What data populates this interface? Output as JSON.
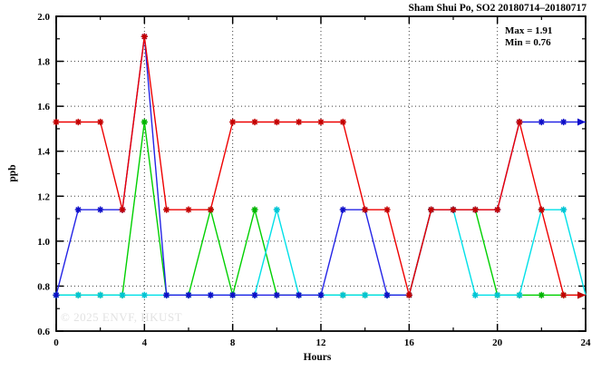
{
  "watermark": "© 2025 ENVF, HKUST",
  "annotation": {
    "max_label": "Max = 1.91",
    "min_label": "Min = 0.76"
  },
  "chart_data": {
    "type": "line",
    "title": "Sham Shui Po, SO2 20180714–20180717",
    "xlabel": "Hours",
    "ylabel": "ppb",
    "xlim": [
      0,
      24
    ],
    "ylim": [
      0.6,
      2.0
    ],
    "x_major_ticks": [
      0,
      4,
      8,
      12,
      16,
      20,
      24
    ],
    "x_minor_ticks": [
      2,
      6,
      10,
      14,
      18,
      22
    ],
    "y_major_ticks": [
      0.6,
      0.8,
      1.0,
      1.2,
      1.4,
      1.6,
      1.8,
      2.0
    ],
    "y_minor_ticks": [
      0.7,
      0.9,
      1.1,
      1.3,
      1.5,
      1.7,
      1.9
    ],
    "grid": "dotted-at-major-ticks",
    "legend_position": "none",
    "marker": "asterisk",
    "end_arrow": true,
    "annotations": [
      "Max = 1.91",
      "Min = 0.76"
    ],
    "x": [
      0,
      1,
      2,
      3,
      4,
      5,
      6,
      7,
      8,
      9,
      10,
      11,
      12,
      13,
      14,
      15,
      16,
      17,
      18,
      19,
      20,
      21,
      22,
      23,
      24
    ],
    "series": [
      {
        "name": "green-series",
        "color": "#00d000",
        "marker_color": "#00b400",
        "values": [
          0.76,
          0.76,
          0.76,
          0.76,
          1.53,
          0.76,
          0.76,
          1.14,
          0.76,
          1.14,
          0.76,
          0.76,
          0.76,
          0.76,
          0.76,
          0.76,
          0.76,
          1.14,
          1.14,
          1.14,
          0.76,
          0.76,
          0.76,
          0.76,
          0.76
        ]
      },
      {
        "name": "cyan-series",
        "color": "#00e0e8",
        "marker_color": "#00c4d4",
        "values": [
          0.76,
          0.76,
          0.76,
          0.76,
          0.76,
          0.76,
          0.76,
          0.76,
          0.76,
          0.76,
          1.14,
          0.76,
          0.76,
          0.76,
          0.76,
          0.76,
          0.76,
          1.14,
          1.14,
          0.76,
          0.76,
          0.76,
          1.14,
          1.14,
          0.76
        ]
      },
      {
        "name": "blue-series",
        "color": "#2424e6",
        "marker_color": "#0e0ec8",
        "values": [
          0.76,
          1.14,
          1.14,
          1.14,
          1.91,
          0.76,
          0.76,
          0.76,
          0.76,
          0.76,
          0.76,
          0.76,
          0.76,
          1.14,
          1.14,
          0.76,
          0.76,
          1.14,
          1.14,
          1.14,
          1.14,
          1.53,
          1.53,
          1.53,
          1.53
        ]
      },
      {
        "name": "red-series",
        "color": "#ee0000",
        "marker_color": "#c40000",
        "values": [
          1.53,
          1.53,
          1.53,
          1.14,
          1.91,
          1.14,
          1.14,
          1.14,
          1.53,
          1.53,
          1.53,
          1.53,
          1.53,
          1.53,
          1.14,
          1.14,
          0.76,
          1.14,
          1.14,
          1.14,
          1.14,
          1.53,
          1.14,
          0.76,
          0.76
        ]
      }
    ]
  }
}
